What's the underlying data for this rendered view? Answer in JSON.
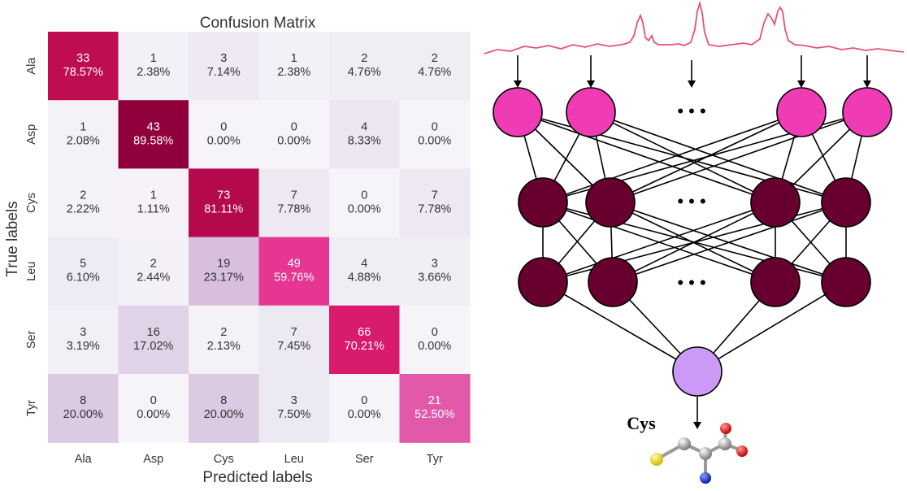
{
  "chart_data": {
    "type": "heatmap",
    "title": "Confusion Matrix",
    "xlabel": "Predicted labels",
    "ylabel": "True labels",
    "x_categories": [
      "Ala",
      "Asp",
      "Cys",
      "Leu",
      "Ser",
      "Tyr"
    ],
    "y_categories": [
      "Ala",
      "Asp",
      "Cys",
      "Leu",
      "Ser",
      "Tyr"
    ],
    "counts": [
      [
        33,
        1,
        3,
        1,
        2,
        2
      ],
      [
        1,
        43,
        0,
        0,
        4,
        0
      ],
      [
        2,
        1,
        73,
        7,
        0,
        7
      ],
      [
        5,
        2,
        19,
        49,
        4,
        3
      ],
      [
        3,
        16,
        2,
        7,
        66,
        0
      ],
      [
        8,
        0,
        8,
        3,
        0,
        21
      ]
    ],
    "percentages": [
      [
        "78.57%",
        "2.38%",
        "7.14%",
        "2.38%",
        "4.76%",
        "4.76%"
      ],
      [
        "2.08%",
        "89.58%",
        "0.00%",
        "0.00%",
        "8.33%",
        "0.00%"
      ],
      [
        "2.22%",
        "1.11%",
        "81.11%",
        "7.78%",
        "0.00%",
        "7.78%"
      ],
      [
        "6.10%",
        "2.44%",
        "23.17%",
        "59.76%",
        "4.88%",
        "3.66%"
      ],
      [
        "3.19%",
        "17.02%",
        "2.13%",
        "7.45%",
        "70.21%",
        "0.00%"
      ],
      [
        "20.00%",
        "0.00%",
        "20.00%",
        "7.50%",
        "0.00%",
        "52.50%"
      ]
    ],
    "colorscale": [
      "#f7f4f9",
      "#e7e1ef",
      "#d4b9da",
      "#c994c7",
      "#df65b0",
      "#e7298a",
      "#ce1256",
      "#980043",
      "#67001f"
    ],
    "grid": false
  },
  "diagram": {
    "output_label": "Cys",
    "ellipsis": "• • •",
    "colors": {
      "spectrum": "#e8526e",
      "input_node": "#f03cb4",
      "hidden_node": "#67002e",
      "output_node": "#cc99f7"
    }
  }
}
